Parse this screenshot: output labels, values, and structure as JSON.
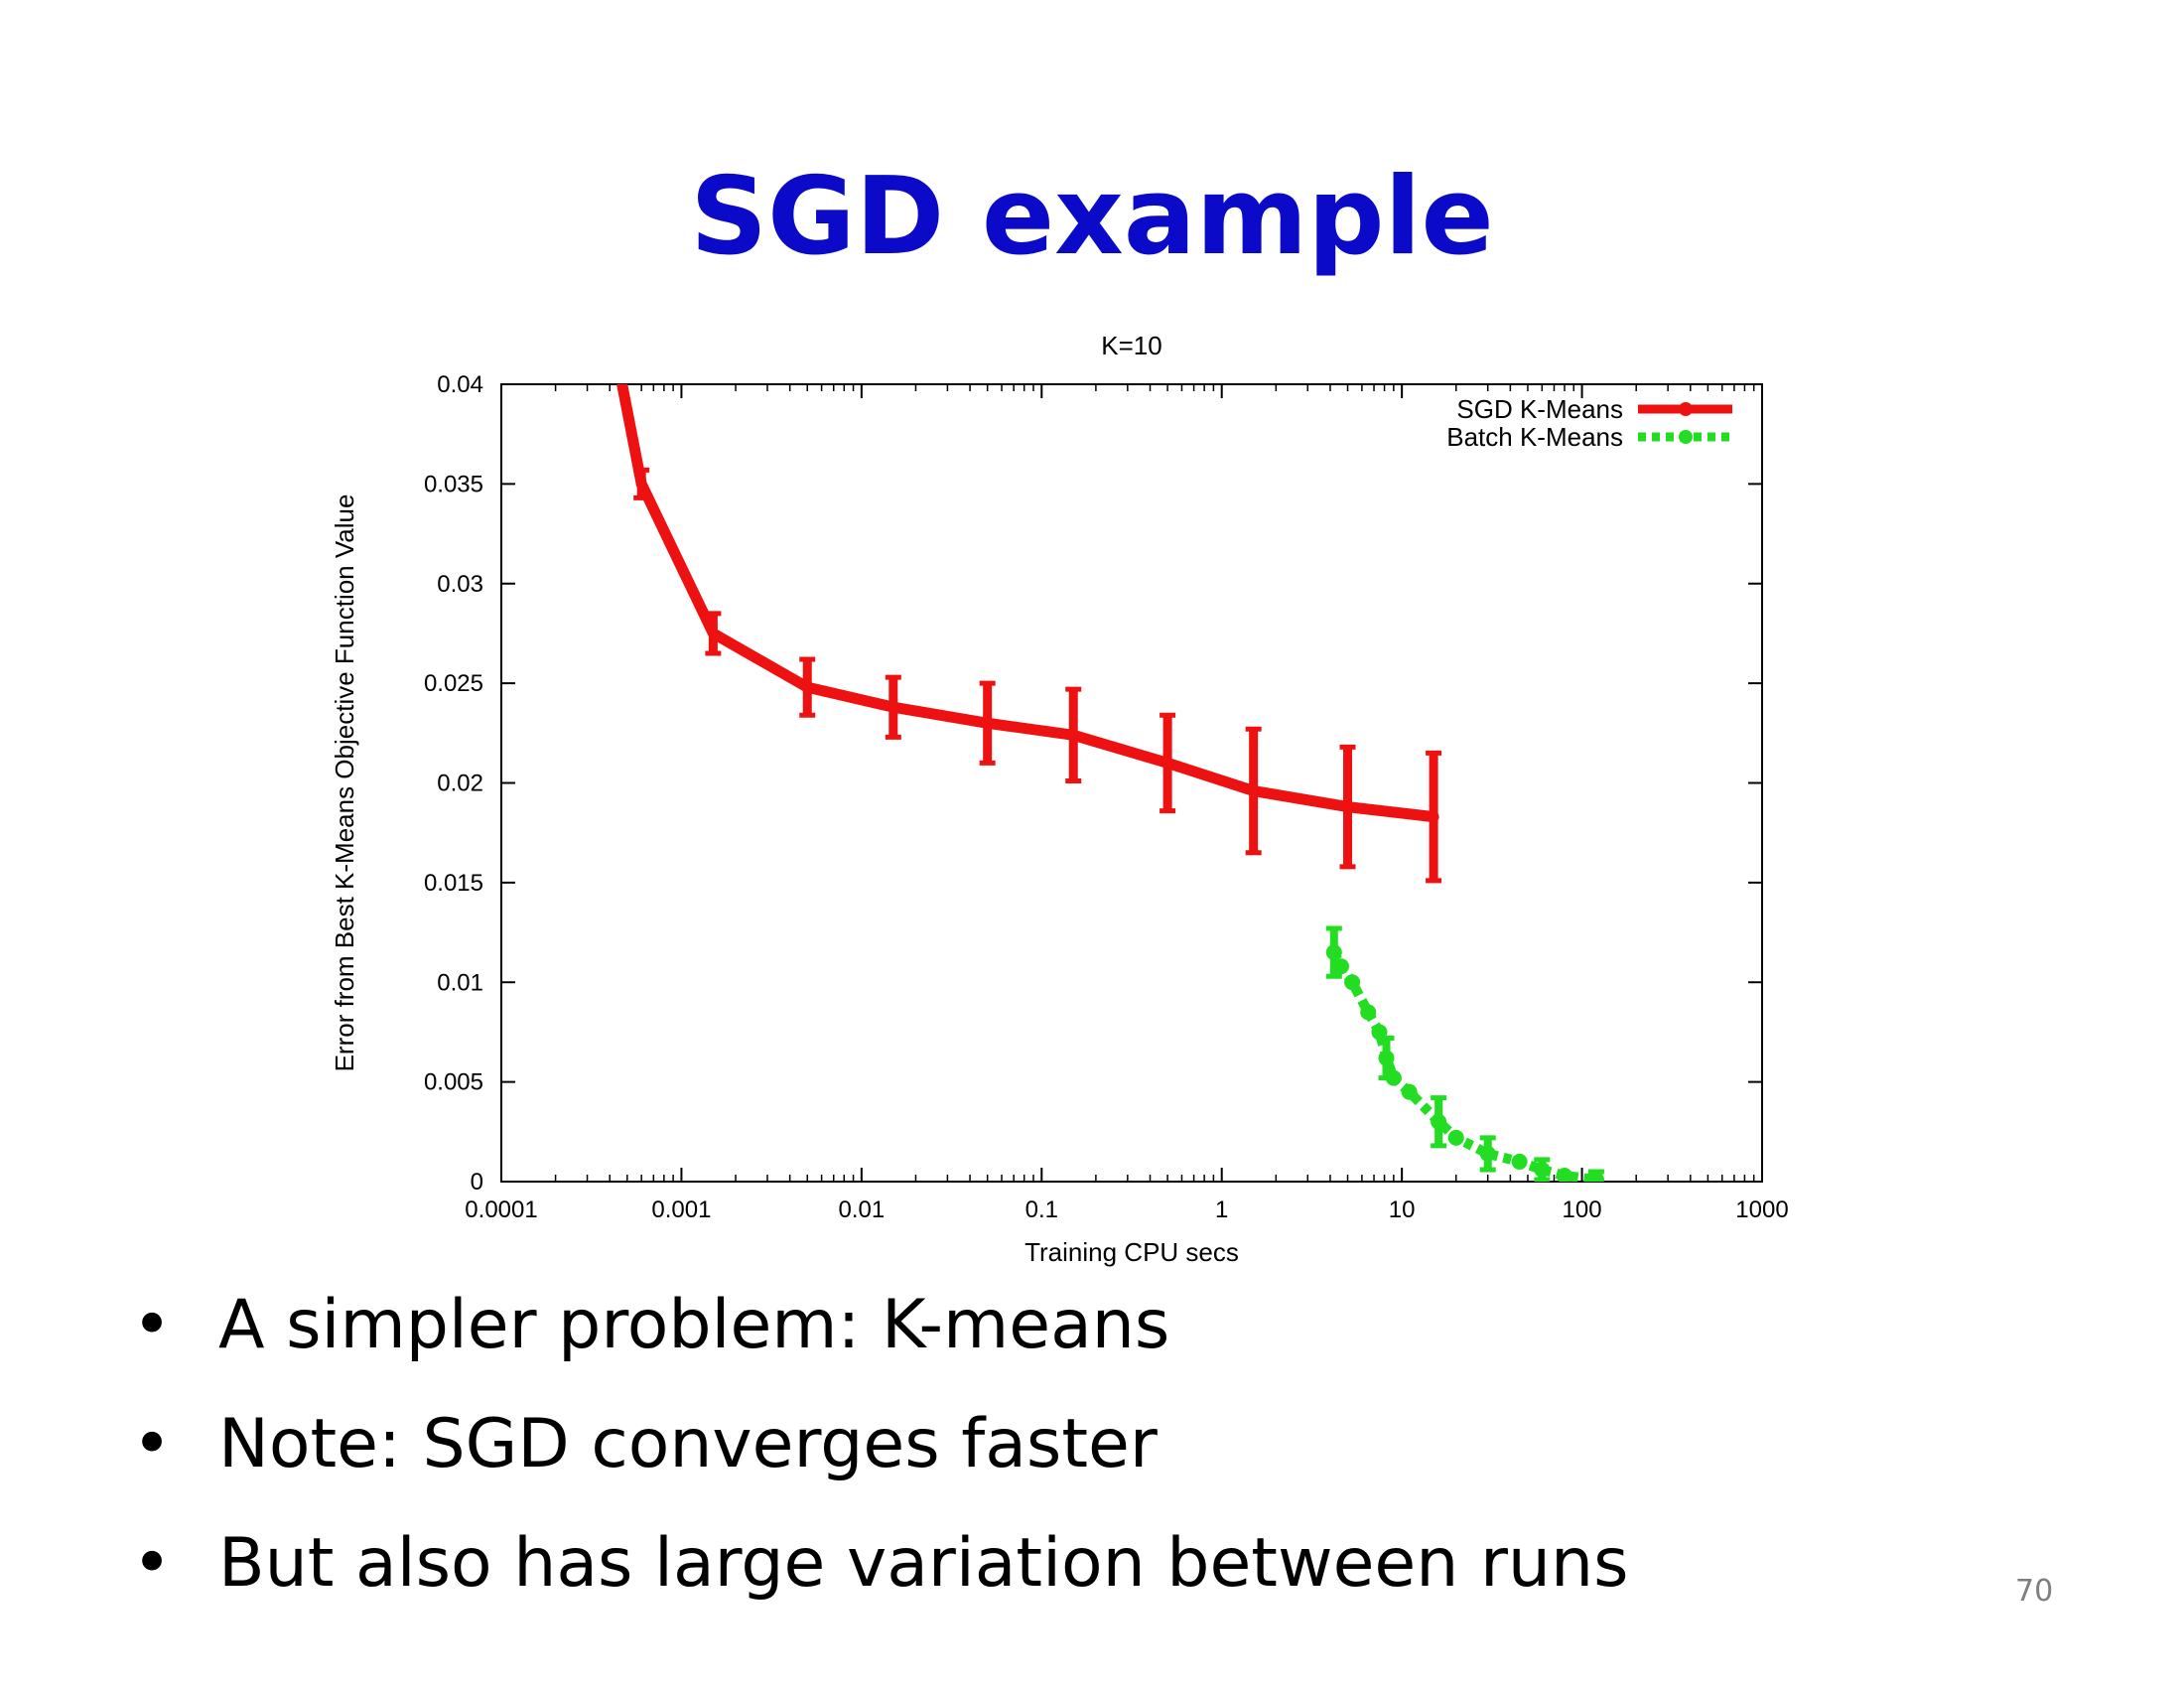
{
  "slide": {
    "title": "SGD example",
    "bullets": [
      "A simpler problem: K-means",
      "Note: SGD converges faster",
      "But also has large variation between runs"
    ],
    "bullet_symbol": "•",
    "page_number": "70",
    "title_color": "#0a0ac8"
  },
  "chart_data": {
    "type": "line",
    "title": "K=10",
    "xlabel": "Training CPU secs",
    "ylabel": "Error from Best K-Means Objective Function Value",
    "x_scale": "log",
    "xlim": [
      0.0001,
      1000
    ],
    "ylim": [
      0,
      0.04
    ],
    "x_ticks": [
      0.0001,
      0.001,
      0.01,
      0.1,
      1,
      10,
      100,
      1000
    ],
    "x_tick_labels": [
      "0.0001",
      "0.001",
      "0.01",
      "0.1",
      "1",
      "10",
      "100",
      "1000"
    ],
    "y_ticks": [
      0,
      0.005,
      0.01,
      0.015,
      0.02,
      0.025,
      0.03,
      0.035,
      0.04
    ],
    "y_tick_labels": [
      "0",
      "0.005",
      "0.01",
      "0.015",
      "0.02",
      "0.025",
      "0.03",
      "0.035",
      "0.04"
    ],
    "grid": false,
    "legend_position": "top-right",
    "series": [
      {
        "name": "SGD K-Means",
        "color": "#ee1111",
        "style": "solid",
        "x": [
          0.00045,
          0.0006,
          0.0015,
          0.005,
          0.015,
          0.05,
          0.15,
          0.5,
          1.5,
          5,
          15
        ],
        "y": [
          0.0408,
          0.035,
          0.0275,
          0.0248,
          0.0238,
          0.023,
          0.0224,
          0.021,
          0.0196,
          0.0188,
          0.0183
        ],
        "err": [
          null,
          0.0007,
          0.001,
          0.0014,
          0.0015,
          0.002,
          0.0023,
          0.0024,
          0.0031,
          0.003,
          0.0032
        ]
      },
      {
        "name": "Batch K-Means",
        "color": "#22dd22",
        "style": "dotted",
        "x": [
          4.2,
          4.6,
          5.3,
          6.5,
          7.5,
          8.2,
          9,
          11,
          16,
          20,
          30,
          45,
          60,
          80,
          120
        ],
        "y": [
          0.0115,
          0.0108,
          0.01,
          0.0085,
          0.0075,
          0.0062,
          0.0052,
          0.0045,
          0.003,
          0.0022,
          0.0014,
          0.001,
          0.0006,
          0.0003,
          0.0001
        ],
        "err": [
          0.0012,
          0.0,
          0.0,
          0.0,
          0.0,
          0.001,
          0.0,
          0.0,
          0.0012,
          0.0,
          0.0008,
          0.0,
          0.0005,
          0.0,
          0.0004
        ]
      }
    ]
  }
}
